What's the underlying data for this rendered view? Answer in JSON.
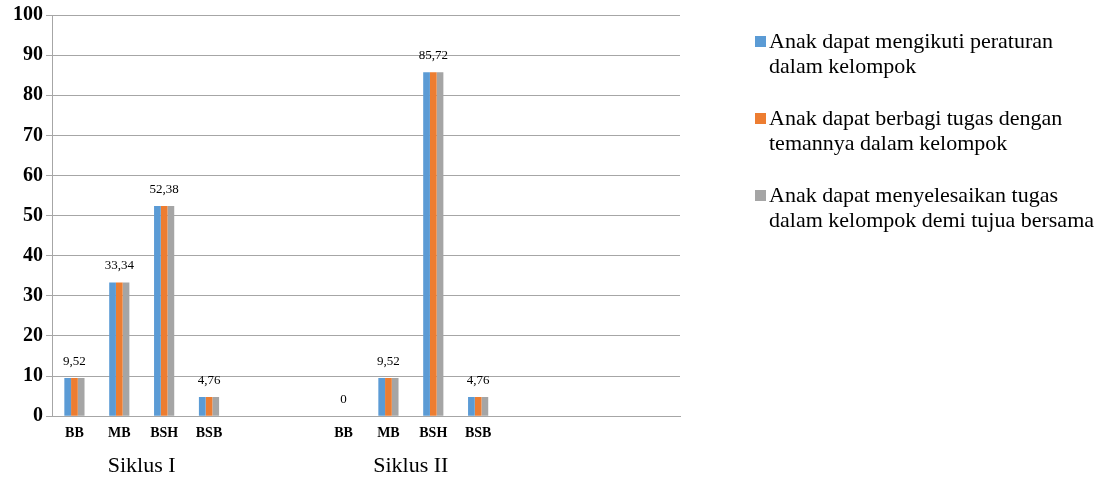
{
  "chart_data": {
    "type": "bar",
    "categories": [
      "BB",
      "MB",
      "BSH",
      "BSB",
      null,
      null,
      "BB",
      "MB",
      "BSH",
      "BSB",
      null,
      null,
      null,
      null
    ],
    "series": [
      {
        "name": "Anak dapat mengikuti peraturan dalam kelompok",
        "color": "#5b9bd5",
        "values": [
          9.52,
          33.34,
          52.38,
          4.76,
          null,
          null,
          0,
          9.52,
          85.72,
          4.76,
          null,
          null,
          null,
          null
        ]
      },
      {
        "name": "Anak dapat berbagi tugas dengan temannya dalam kelompok",
        "color": "#ed7d31",
        "values": [
          9.52,
          33.34,
          52.38,
          4.76,
          null,
          null,
          0,
          9.52,
          85.72,
          4.76,
          null,
          null,
          null,
          null
        ],
        "value_labels": [
          "9,52",
          "33,34",
          "52,38",
          "4,76",
          null,
          null,
          "0",
          "9,52",
          "85,72",
          "4,76",
          null,
          null,
          null,
          null
        ]
      },
      {
        "name": "Anak dapat menyelesaikan tugas dalam kelompok demi tujua bersama",
        "color": "#a5a5a5",
        "values": [
          9.52,
          33.34,
          52.38,
          4.76,
          null,
          null,
          0,
          9.52,
          85.72,
          4.76,
          null,
          null,
          null,
          null
        ]
      }
    ],
    "ylim": [
      0,
      100
    ],
    "yticks": [
      0,
      10,
      20,
      30,
      40,
      50,
      60,
      70,
      80,
      90,
      100
    ],
    "grid": "y",
    "legend": "right",
    "annotations": [
      "Siklus I",
      "Siklus II"
    ]
  }
}
